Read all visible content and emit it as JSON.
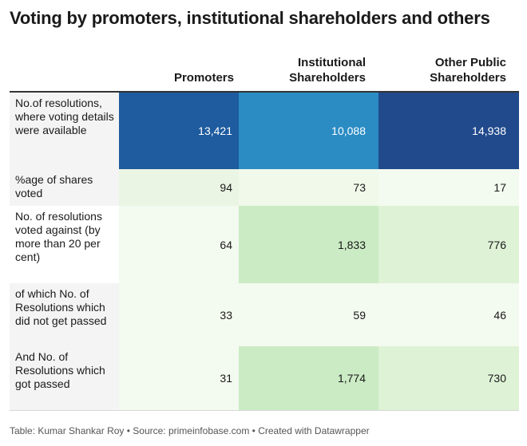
{
  "title": "Voting by promoters, institutional shareholders and others",
  "footer": "Table: Kumar Shankar Roy • Source: primeinfobase.com • Created with Datawrapper",
  "chart_data": {
    "type": "table",
    "columns": [
      "Promoters",
      "Institutional Shareholders",
      "Other Public Shareholders"
    ],
    "rows": [
      {
        "label": "No.of resolutions, where voting details were available",
        "values": [
          "13,421",
          "10,088",
          "14,938"
        ],
        "colors": [
          "#1e5b9f",
          "#2b8cc4",
          "#214a8c"
        ]
      },
      {
        "label": "%age of shares voted",
        "values": [
          "94",
          "73",
          "17"
        ],
        "colors": [
          "#eaf5e3",
          "#f0f9ea",
          "#f3faef"
        ]
      },
      {
        "label": "No. of resolutions voted against (by more than 20 per cent)",
        "values": [
          "64",
          "1,833",
          "776"
        ],
        "colors": [
          "#f3faef",
          "#cbebc4",
          "#def2d6"
        ]
      },
      {
        "label": "of which No. of Resolutions which did not get passed",
        "values": [
          "33",
          "59",
          "46"
        ],
        "colors": [
          "#f3faef",
          "#f3faef",
          "#f3faef"
        ]
      },
      {
        "label": "And No. of Resolutions which got passed",
        "values": [
          "31",
          "1,774",
          "730"
        ],
        "colors": [
          "#f3faef",
          "#cbebc4",
          "#def2d6"
        ]
      }
    ]
  }
}
